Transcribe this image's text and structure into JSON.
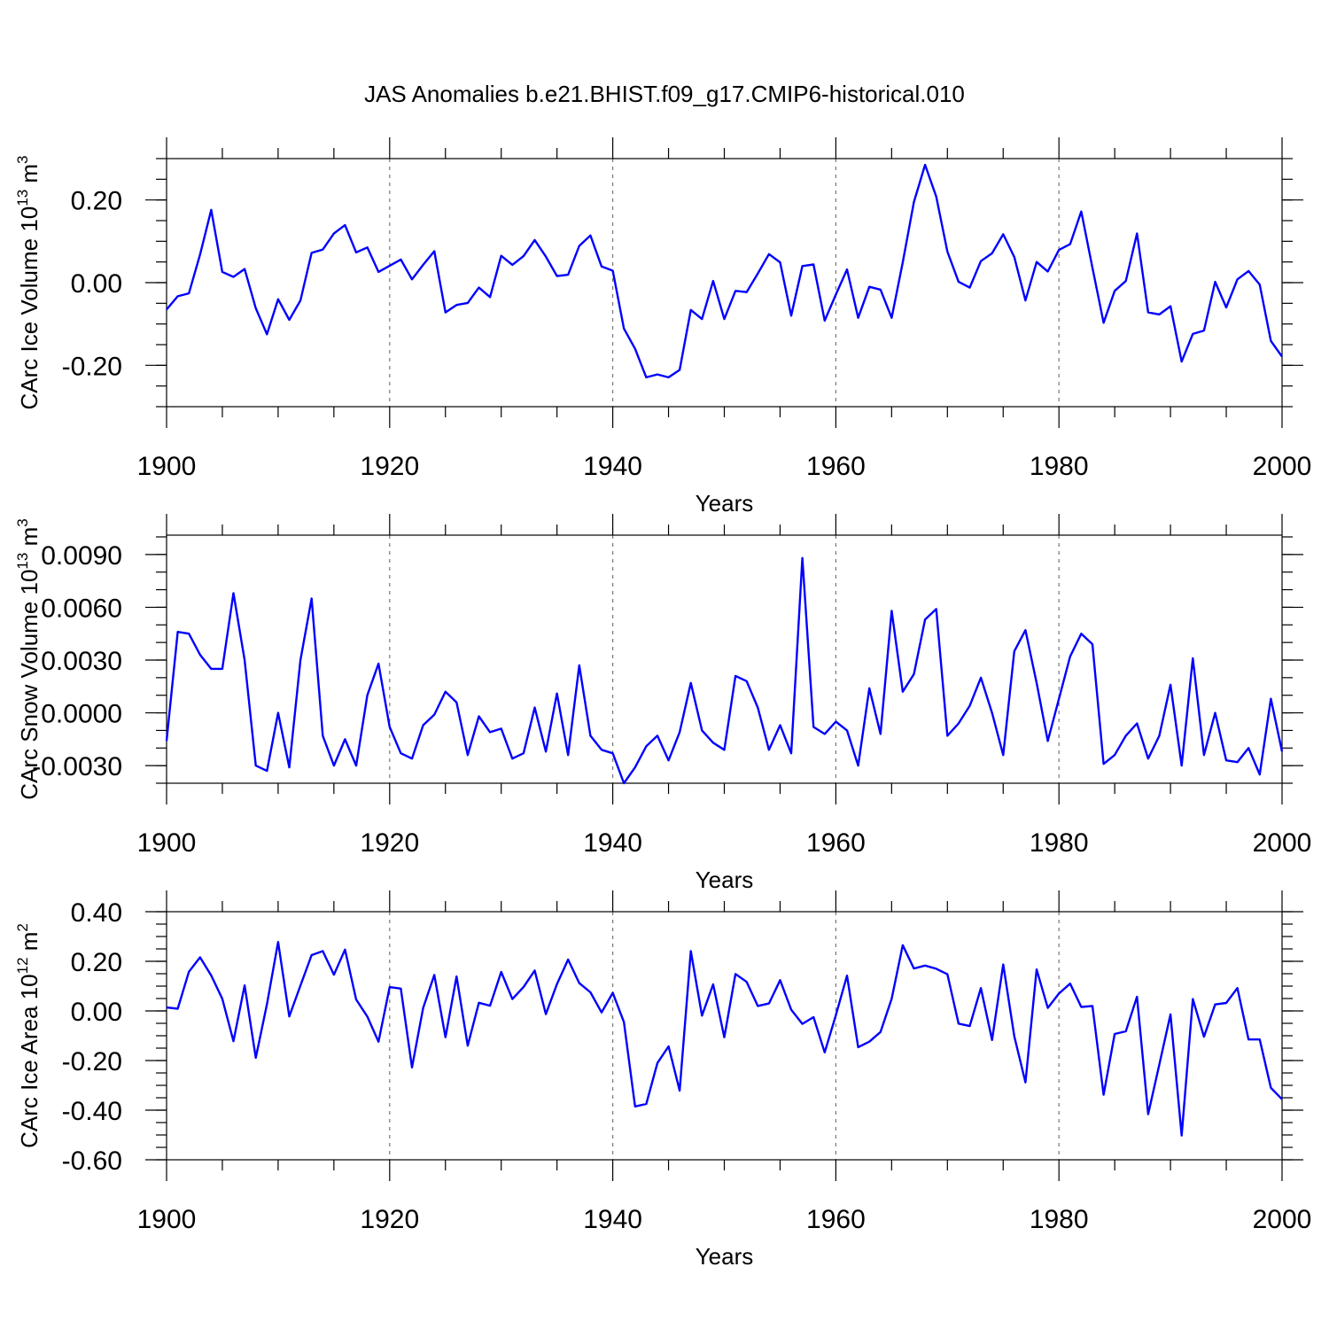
{
  "figure": {
    "title": "JAS Anomalies b.e21.BHIST.f09_g17.CMIP6-historical.010",
    "line_color": "#0000ff"
  },
  "chart_data": [
    {
      "type": "line",
      "name": "ice-volume",
      "xlabel": "Years",
      "ylabel": "CArc Ice Volume 10",
      "ylabel_sup": "13",
      "ylabel_unit": " m",
      "ylabel_unit_sup": "3",
      "xlim": [
        1900,
        2000
      ],
      "ylim": [
        -0.3,
        0.3
      ],
      "xticks": [
        1900,
        1920,
        1940,
        1960,
        1980,
        2000
      ],
      "xtick_labels": [
        "1900",
        "1920",
        "1940",
        "1960",
        "1980",
        "2000"
      ],
      "yticks": [
        -0.2,
        0.0,
        0.2
      ],
      "ytick_labels": [
        "-0.20",
        "0.00",
        "0.20"
      ],
      "yminor_step": 0.05,
      "grid_x": [
        1920,
        1940,
        1960,
        1980
      ],
      "x_start": 1900,
      "values": [
        -0.065,
        -0.033,
        -0.026,
        0.068,
        0.176,
        0.026,
        0.014,
        0.033,
        -0.062,
        -0.125,
        -0.04,
        -0.09,
        -0.043,
        0.072,
        0.08,
        0.119,
        0.139,
        0.073,
        0.085,
        0.026,
        0.041,
        0.056,
        0.008,
        0.043,
        0.076,
        -0.072,
        -0.054,
        -0.049,
        -0.012,
        -0.035,
        0.065,
        0.043,
        0.064,
        0.103,
        0.063,
        0.016,
        0.019,
        0.089,
        0.114,
        0.039,
        0.029,
        -0.111,
        -0.16,
        -0.229,
        -0.222,
        -0.229,
        -0.211,
        -0.066,
        -0.088,
        0.004,
        -0.088,
        -0.02,
        -0.023,
        0.022,
        0.069,
        0.049,
        -0.08,
        0.04,
        0.044,
        -0.092,
        -0.029,
        0.032,
        -0.085,
        -0.01,
        -0.017,
        -0.085,
        0.049,
        0.195,
        0.285,
        0.208,
        0.075,
        0.002,
        -0.012,
        0.052,
        0.071,
        0.117,
        0.062,
        -0.043,
        0.05,
        0.027,
        0.079,
        0.093,
        0.172,
        0.036,
        -0.097,
        -0.02,
        0.004,
        0.119,
        -0.072,
        -0.077,
        -0.057,
        -0.191,
        -0.124,
        -0.116,
        0.002,
        -0.06,
        0.008,
        0.028,
        -0.005,
        -0.141,
        -0.179
      ]
    },
    {
      "type": "line",
      "name": "snow-volume",
      "xlabel": "Years",
      "ylabel": "CArc Snow Volume 10",
      "ylabel_sup": "13",
      "ylabel_unit": " m",
      "ylabel_unit_sup": "3",
      "xlim": [
        1900,
        2000
      ],
      "ylim": [
        -0.004,
        0.0101
      ],
      "xticks": [
        1900,
        1920,
        1940,
        1960,
        1980,
        2000
      ],
      "xtick_labels": [
        "1900",
        "1920",
        "1940",
        "1960",
        "1980",
        "2000"
      ],
      "yticks": [
        -0.003,
        0.0,
        0.003,
        0.006,
        0.009
      ],
      "ytick_labels": [
        "-0.0030",
        "0.0000",
        "0.0030",
        "0.0060",
        "0.0090"
      ],
      "yminor_step": 0.001,
      "grid_x": [
        1920,
        1940,
        1960,
        1980
      ],
      "x_start": 1900,
      "values": [
        -0.0016,
        0.0046,
        0.0045,
        0.0033,
        0.0025,
        0.0025,
        0.0068,
        0.003,
        -0.003,
        -0.0033,
        0.0,
        -0.0031,
        0.003,
        0.0065,
        -0.0013,
        -0.003,
        -0.0015,
        -0.003,
        0.001,
        0.0028,
        -0.0008,
        -0.0023,
        -0.0026,
        -0.0007,
        -0.0001,
        0.0012,
        0.0006,
        -0.0024,
        -0.0002,
        -0.0011,
        -0.0009,
        -0.0026,
        -0.0023,
        0.0003,
        -0.0022,
        0.0011,
        -0.0024,
        0.0027,
        -0.0013,
        -0.0021,
        -0.0023,
        -0.004,
        -0.0031,
        -0.0019,
        -0.0013,
        -0.0027,
        -0.0011,
        0.0017,
        -0.001,
        -0.0017,
        -0.0021,
        0.0021,
        0.0018,
        0.0003,
        -0.0021,
        -0.0007,
        -0.0023,
        0.0088,
        -0.0008,
        -0.0012,
        -0.0005,
        -0.001,
        -0.003,
        0.0014,
        -0.0012,
        0.0058,
        0.0012,
        0.0022,
        0.0053,
        0.0059,
        -0.0013,
        -0.0006,
        0.0004,
        0.002,
        0.0,
        -0.0024,
        0.0035,
        0.0047,
        0.0017,
        -0.0016,
        0.0008,
        0.0032,
        0.0045,
        0.0039,
        -0.0029,
        -0.0024,
        -0.0013,
        -0.0006,
        -0.0026,
        -0.0013,
        0.0016,
        -0.003,
        0.0031,
        -0.0024,
        0.0,
        -0.0027,
        -0.0028,
        -0.002,
        -0.0035,
        0.0008,
        -0.0022
      ]
    },
    {
      "type": "line",
      "name": "ice-area",
      "xlabel": "Years",
      "ylabel": "CArc Ice Area 10",
      "ylabel_sup": "12",
      "ylabel_unit": " m",
      "ylabel_unit_sup": "2",
      "xlim": [
        1900,
        2000
      ],
      "ylim": [
        -0.6,
        0.4
      ],
      "xticks": [
        1900,
        1920,
        1940,
        1960,
        1980,
        2000
      ],
      "xtick_labels": [
        "1900",
        "1920",
        "1940",
        "1960",
        "1980",
        "2000"
      ],
      "yticks": [
        -0.6,
        -0.4,
        -0.2,
        0.0,
        0.2,
        0.4
      ],
      "ytick_labels": [
        "-0.60",
        "-0.40",
        "-0.20",
        "0.00",
        "0.20",
        "0.40"
      ],
      "yminor_step": 0.05,
      "grid_x": [
        1920,
        1940,
        1960,
        1980
      ],
      "x_start": 1900,
      "values": [
        0.014,
        0.009,
        0.158,
        0.216,
        0.143,
        0.049,
        -0.122,
        0.103,
        -0.189,
        0.027,
        0.278,
        -0.022,
        0.102,
        0.225,
        0.241,
        0.146,
        0.247,
        0.046,
        -0.023,
        -0.124,
        0.096,
        0.09,
        -0.228,
        0.012,
        0.145,
        -0.106,
        0.139,
        -0.14,
        0.033,
        0.021,
        0.157,
        0.048,
        0.096,
        0.163,
        -0.013,
        0.108,
        0.207,
        0.112,
        0.075,
        -0.006,
        0.073,
        -0.045,
        -0.385,
        -0.375,
        -0.21,
        -0.143,
        -0.321,
        0.241,
        -0.019,
        0.107,
        -0.106,
        0.149,
        0.117,
        0.02,
        0.03,
        0.124,
        0.005,
        -0.052,
        -0.025,
        -0.167,
        -0.017,
        0.142,
        -0.146,
        -0.124,
        -0.085,
        0.049,
        0.265,
        0.171,
        0.183,
        0.17,
        0.148,
        -0.051,
        -0.061,
        0.092,
        -0.117,
        0.187,
        -0.102,
        -0.288,
        0.167,
        0.012,
        0.07,
        0.11,
        0.016,
        0.02,
        -0.338,
        -0.093,
        -0.082,
        0.057,
        -0.416,
        -0.216,
        -0.014,
        -0.502,
        0.048,
        -0.104,
        0.026,
        0.032,
        0.092,
        -0.115,
        -0.115,
        -0.31,
        -0.356
      ]
    }
  ]
}
